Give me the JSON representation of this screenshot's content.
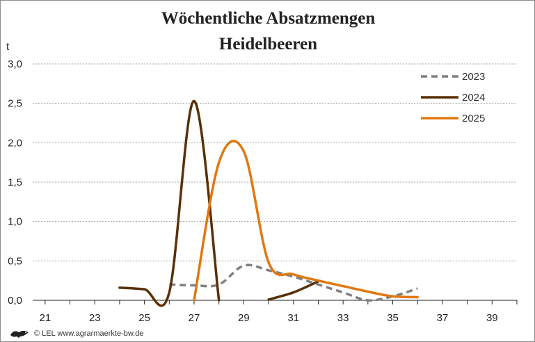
{
  "chart_data": {
    "type": "line",
    "title": "Wöchentliche Absatzmengen",
    "subtitle": "Heidelbeeren",
    "xlabel": "",
    "ylabel": "t",
    "xlim": [
      20.5,
      40
    ],
    "ylim": [
      0,
      3.0
    ],
    "x_ticks": [
      21,
      23,
      25,
      27,
      29,
      31,
      33,
      35,
      37,
      39
    ],
    "y_ticks": [
      "0,0",
      "0,5",
      "1,0",
      "1,5",
      "2,0",
      "2,5",
      "3,0"
    ],
    "grid": "horizontal dashed",
    "legend": "top-right",
    "series": [
      {
        "name": "2023",
        "color": "#808080",
        "style": "dashed",
        "x": [
          26,
          27,
          28,
          29,
          30,
          31,
          32,
          33,
          34,
          35,
          36
        ],
        "y": [
          0.2,
          0.19,
          0.2,
          0.44,
          0.38,
          0.3,
          0.2,
          0.1,
          0.0,
          0.05,
          0.15
        ]
      },
      {
        "name": "2024",
        "color": "#5a3008",
        "style": "solid",
        "x": [
          24,
          25,
          26,
          27,
          28,
          29,
          30,
          31,
          32
        ],
        "y": [
          0.16,
          0.14,
          0.1,
          2.53,
          0.0,
          null,
          0.01,
          0.1,
          0.24
        ]
      },
      {
        "name": "2025",
        "color": "#e07810",
        "style": "solid",
        "x": [
          27,
          28,
          29,
          30,
          31,
          32,
          33,
          34,
          35,
          36
        ],
        "y": [
          0.0,
          1.75,
          1.89,
          0.48,
          0.33,
          0.25,
          0.18,
          0.11,
          0.05,
          0.04
        ]
      }
    ]
  },
  "footer": {
    "logo_icon": "lion-logo-icon",
    "text": "© LEL www.agrarmaerkte-bw.de"
  }
}
